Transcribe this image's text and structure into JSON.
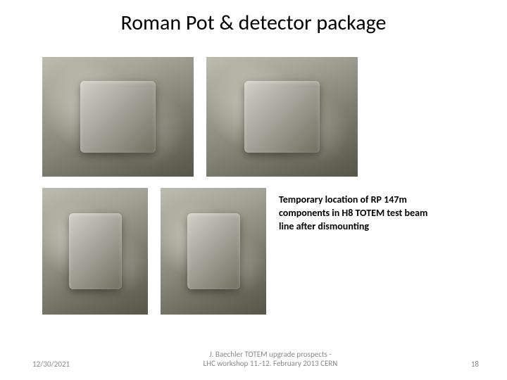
{
  "title": "Roman Pot & detector package",
  "caption": "Temporary location of RP 147m components in H8 TOTEM test beam line after dismounting",
  "footer": {
    "date": "12/30/2021",
    "center_line1": "J. Baechler   TOTEM upgrade prospects -",
    "center_line2": "LHC workshop 11.-12. February 2013 CERN",
    "page": "18"
  }
}
